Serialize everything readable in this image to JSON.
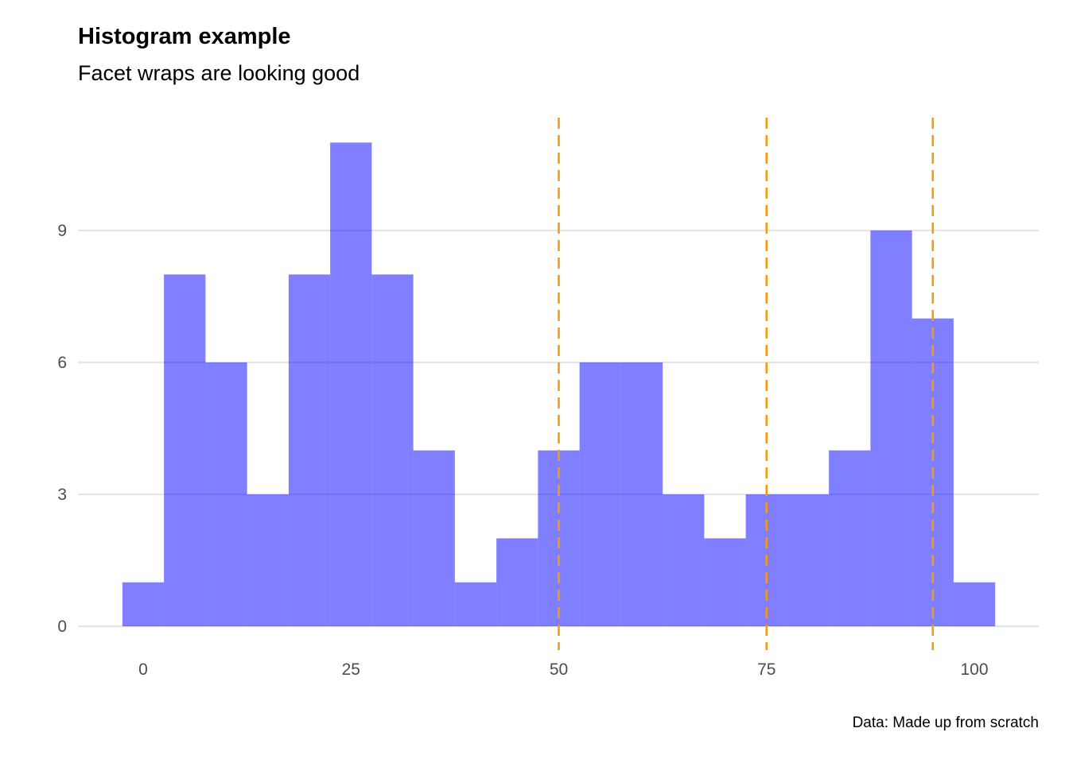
{
  "chart_data": {
    "type": "bar",
    "title": "Histogram example",
    "subtitle": "Facet wraps are looking good",
    "caption": "Data: Made up from scratch",
    "xlabel": "",
    "ylabel": "",
    "bin_width": 5,
    "bins": [
      {
        "start": -2.5,
        "end": 2.5,
        "count": 1
      },
      {
        "start": 2.5,
        "end": 7.5,
        "count": 8
      },
      {
        "start": 7.5,
        "end": 12.5,
        "count": 6
      },
      {
        "start": 12.5,
        "end": 17.5,
        "count": 3
      },
      {
        "start": 17.5,
        "end": 22.5,
        "count": 8
      },
      {
        "start": 22.5,
        "end": 27.5,
        "count": 11
      },
      {
        "start": 27.5,
        "end": 32.5,
        "count": 8
      },
      {
        "start": 32.5,
        "end": 37.5,
        "count": 4
      },
      {
        "start": 37.5,
        "end": 42.5,
        "count": 1
      },
      {
        "start": 42.5,
        "end": 47.5,
        "count": 2
      },
      {
        "start": 47.5,
        "end": 52.5,
        "count": 4
      },
      {
        "start": 52.5,
        "end": 57.5,
        "count": 6
      },
      {
        "start": 57.5,
        "end": 62.5,
        "count": 6
      },
      {
        "start": 62.5,
        "end": 67.5,
        "count": 3
      },
      {
        "start": 67.5,
        "end": 72.5,
        "count": 2
      },
      {
        "start": 72.5,
        "end": 77.5,
        "count": 3
      },
      {
        "start": 77.5,
        "end": 82.5,
        "count": 3
      },
      {
        "start": 82.5,
        "end": 87.5,
        "count": 4
      },
      {
        "start": 87.5,
        "end": 92.5,
        "count": 9
      },
      {
        "start": 92.5,
        "end": 97.5,
        "count": 7
      },
      {
        "start": 97.5,
        "end": 102.5,
        "count": 1
      }
    ],
    "reference_lines": [
      50,
      75,
      95
    ],
    "x_ticks": [
      "0",
      "25",
      "50",
      "75",
      "100"
    ],
    "y_ticks": [
      "0",
      "3",
      "6",
      "9"
    ],
    "xlim": [
      -5,
      108.5
    ],
    "ylim": [
      0,
      11.5
    ],
    "grid": "horizontal major only",
    "colors": {
      "bar_fill": "#0000ff",
      "bar_opacity": 0.5,
      "reference_line": "#f39c12",
      "grid": "#e5e5e5"
    }
  }
}
